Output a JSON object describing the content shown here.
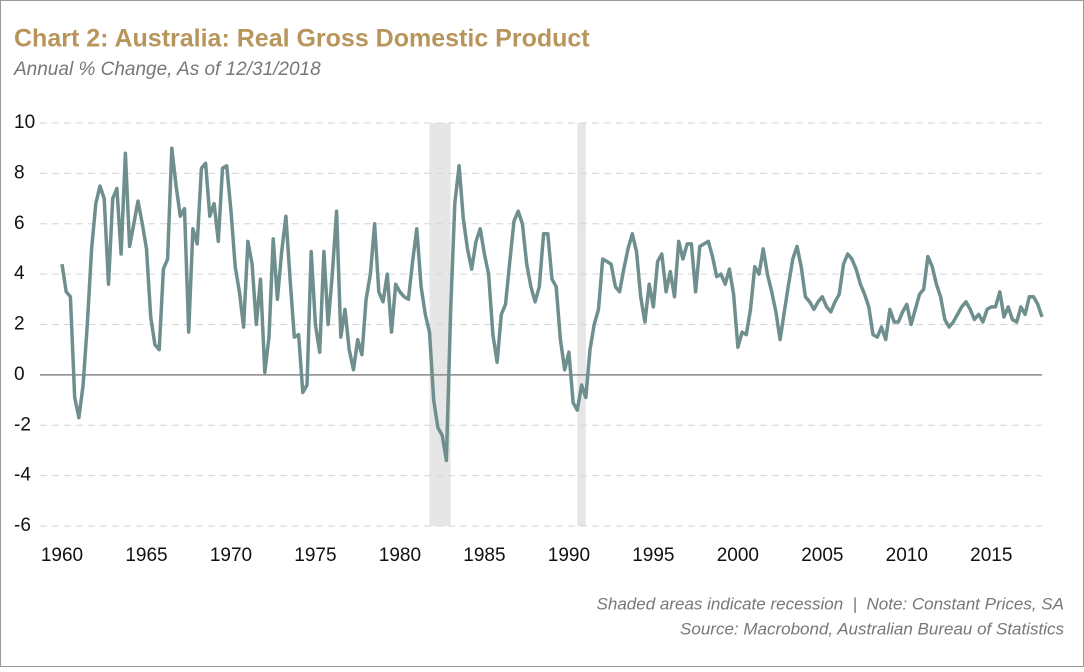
{
  "chart_data": {
    "type": "line",
    "title": "Chart 2: Australia: Real Gross Domestic Product",
    "subtitle": "Annual % Change, As of 12/31/2018",
    "notes": [
      "Shaded areas indicate recession  |  Note: Constant Prices, SA",
      "Source: Macrobond, Australian Bureau of Statistics"
    ],
    "xlim": [
      1960,
      2018
    ],
    "ylim": [
      -6,
      10
    ],
    "xticks": [
      1960,
      1965,
      1970,
      1975,
      1980,
      1985,
      1990,
      1995,
      2000,
      2005,
      2010,
      2015
    ],
    "yticks": [
      -6,
      -4,
      -2,
      0,
      2,
      4,
      6,
      8,
      10
    ],
    "grid": true,
    "recessions": [
      [
        1981.75,
        1983.0
      ],
      [
        1990.5,
        1991.0
      ]
    ],
    "recession_color": "#e6e6e6",
    "series": [
      {
        "color": "#6f8f8e",
        "x": [
          1960.0,
          1960.25,
          1960.5,
          1960.75,
          1961.0,
          1961.25,
          1961.5,
          1961.75,
          1962.0,
          1962.25,
          1962.5,
          1962.75,
          1963.0,
          1963.25,
          1963.5,
          1963.75,
          1964.0,
          1964.25,
          1964.5,
          1964.75,
          1965.0,
          1965.25,
          1965.5,
          1965.75,
          1966.0,
          1966.25,
          1966.5,
          1966.75,
          1967.0,
          1967.25,
          1967.5,
          1967.75,
          1968.0,
          1968.25,
          1968.5,
          1968.75,
          1969.0,
          1969.25,
          1969.5,
          1969.75,
          1970.0,
          1970.25,
          1970.5,
          1970.75,
          1971.0,
          1971.25,
          1971.5,
          1971.75,
          1972.0,
          1972.25,
          1972.5,
          1972.75,
          1973.0,
          1973.25,
          1973.5,
          1973.75,
          1974.0,
          1974.25,
          1974.5,
          1974.75,
          1975.0,
          1975.25,
          1975.5,
          1975.75,
          1976.0,
          1976.25,
          1976.5,
          1976.75,
          1977.0,
          1977.25,
          1977.5,
          1977.75,
          1978.0,
          1978.25,
          1978.5,
          1978.75,
          1979.0,
          1979.25,
          1979.5,
          1979.75,
          1980.0,
          1980.25,
          1980.5,
          1980.75,
          1981.0,
          1981.25,
          1981.5,
          1981.75,
          1982.0,
          1982.25,
          1982.5,
          1982.75,
          1983.0,
          1983.25,
          1983.5,
          1983.75,
          1984.0,
          1984.25,
          1984.5,
          1984.75,
          1985.0,
          1985.25,
          1985.5,
          1985.75,
          1986.0,
          1986.25,
          1986.5,
          1986.75,
          1987.0,
          1987.25,
          1987.5,
          1987.75,
          1988.0,
          1988.25,
          1988.5,
          1988.75,
          1989.0,
          1989.25,
          1989.5,
          1989.75,
          1990.0,
          1990.25,
          1990.5,
          1990.75,
          1991.0,
          1991.25,
          1991.5,
          1991.75,
          1992.0,
          1992.25,
          1992.5,
          1992.75,
          1993.0,
          1993.25,
          1993.5,
          1993.75,
          1994.0,
          1994.25,
          1994.5,
          1994.75,
          1995.0,
          1995.25,
          1995.5,
          1995.75,
          1996.0,
          1996.25,
          1996.5,
          1996.75,
          1997.0,
          1997.25,
          1997.5,
          1997.75,
          1998.0,
          1998.25,
          1998.5,
          1998.75,
          1999.0,
          1999.25,
          1999.5,
          1999.75,
          2000.0,
          2000.25,
          2000.5,
          2000.75,
          2001.0,
          2001.25,
          2001.5,
          2001.75,
          2002.0,
          2002.25,
          2002.5,
          2002.75,
          2003.0,
          2003.25,
          2003.5,
          2003.75,
          2004.0,
          2004.25,
          2004.5,
          2004.75,
          2005.0,
          2005.25,
          2005.5,
          2005.75,
          2006.0,
          2006.25,
          2006.5,
          2006.75,
          2007.0,
          2007.25,
          2007.5,
          2007.75,
          2008.0,
          2008.25,
          2008.5,
          2008.75,
          2009.0,
          2009.25,
          2009.5,
          2009.75,
          2010.0,
          2010.25,
          2010.5,
          2010.75,
          2011.0,
          2011.25,
          2011.5,
          2011.75,
          2012.0,
          2012.25,
          2012.5,
          2012.75,
          2013.0,
          2013.25,
          2013.5,
          2013.75,
          2014.0,
          2014.25,
          2014.5,
          2014.75,
          2015.0,
          2015.25,
          2015.5,
          2015.75,
          2016.0,
          2016.25,
          2016.5,
          2016.75,
          2017.0,
          2017.25,
          2017.5,
          2017.75,
          2018.0
        ],
        "values": [
          4.4,
          3.3,
          3.1,
          -0.9,
          -1.7,
          -0.4,
          2.0,
          5.0,
          6.8,
          7.5,
          7.0,
          3.6,
          7.0,
          7.4,
          4.8,
          8.8,
          5.1,
          6.0,
          6.9,
          6.0,
          5.0,
          2.3,
          1.2,
          1.0,
          4.2,
          4.6,
          9.0,
          7.5,
          6.3,
          6.6,
          1.7,
          5.8,
          5.2,
          8.2,
          8.4,
          6.3,
          6.8,
          5.3,
          8.2,
          8.3,
          6.5,
          4.3,
          3.3,
          1.9,
          5.3,
          4.4,
          2.0,
          3.8,
          0.1,
          1.5,
          5.4,
          3.0,
          4.9,
          6.3,
          3.8,
          1.5,
          1.6,
          -0.7,
          -0.4,
          4.9,
          2.0,
          0.9,
          4.9,
          2.0,
          4.0,
          6.5,
          1.5,
          2.6,
          1.0,
          0.2,
          1.4,
          0.8,
          3.0,
          4.0,
          6.0,
          3.3,
          2.9,
          4.0,
          1.7,
          3.6,
          3.3,
          3.1,
          3.0,
          4.5,
          5.8,
          3.5,
          2.4,
          1.7,
          -1.0,
          -2.1,
          -2.4,
          -3.4,
          2.5,
          6.8,
          8.3,
          6.2,
          5.0,
          4.2,
          5.3,
          5.8,
          4.8,
          4.0,
          1.6,
          0.5,
          2.4,
          2.8,
          4.5,
          6.1,
          6.5,
          6.0,
          4.4,
          3.5,
          2.9,
          3.5,
          5.6,
          5.6,
          3.8,
          3.5,
          1.4,
          0.2,
          0.9,
          -1.1,
          -1.4,
          -0.4,
          -0.9,
          1.0,
          2.0,
          2.6,
          4.6,
          4.5,
          4.4,
          3.5,
          3.3,
          4.2,
          5.0,
          5.6,
          4.9,
          3.1,
          2.1,
          3.6,
          2.7,
          4.5,
          4.8,
          3.3,
          4.1,
          3.1,
          5.3,
          4.6,
          5.2,
          5.2,
          3.3,
          5.1,
          5.2,
          5.3,
          4.7,
          3.9,
          4.0,
          3.6,
          4.2,
          3.2,
          1.1,
          1.7,
          1.6,
          2.6,
          4.3,
          4.0,
          5.0,
          4.0,
          3.3,
          2.5,
          1.4,
          2.5,
          3.6,
          4.6,
          5.1,
          4.3,
          3.1,
          2.9,
          2.6,
          2.9,
          3.1,
          2.7,
          2.5,
          2.9,
          3.2,
          4.4,
          4.8,
          4.6,
          4.2,
          3.6,
          3.2,
          2.7,
          1.6,
          1.5,
          1.9,
          1.4,
          2.6,
          2.1,
          2.1,
          2.5,
          2.8,
          2.0,
          2.6,
          3.2,
          3.4,
          4.7,
          4.3,
          3.6,
          3.1,
          2.2,
          1.9,
          2.1,
          2.4,
          2.7,
          2.9,
          2.6,
          2.2,
          2.4,
          2.1,
          2.6,
          2.7,
          2.7,
          3.3,
          2.3,
          2.7,
          2.2,
          2.1,
          2.7,
          2.4,
          3.1,
          3.1,
          2.8,
          2.3
        ]
      }
    ]
  }
}
